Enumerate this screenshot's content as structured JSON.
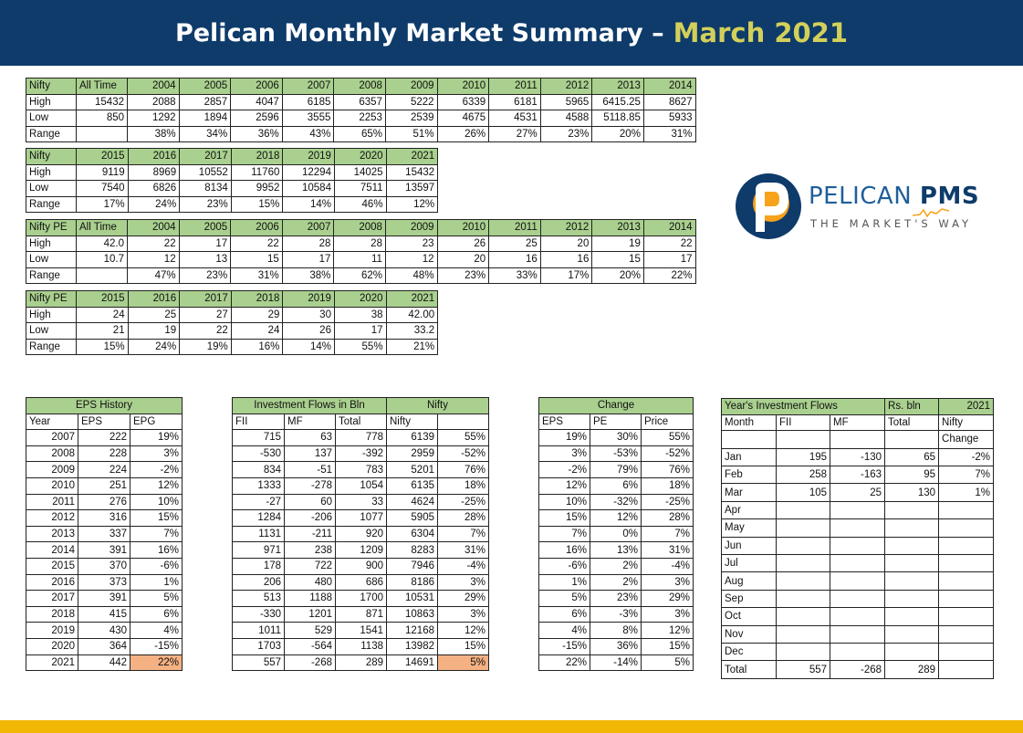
{
  "header": {
    "title": "Pelican Monthly Market Summary –",
    "highlight": "March 2021"
  },
  "logo": {
    "brand": "PELICAN",
    "brand_bold": "PMS",
    "tagline": "THE MARKET'S WAY"
  },
  "colors": {
    "header_bg": "#0e3b6a",
    "accent_text": "#d3d05a",
    "green_cell": "#a9d08e",
    "orange_cell": "#f4b183",
    "footer_bar": "#f2b705"
  },
  "nifty_hist": [
    [
      "Nifty",
      "All Time",
      "2004",
      "2005",
      "2006",
      "2007",
      "2008",
      "2009",
      "2010",
      "2011",
      "2012",
      "2013",
      "2014"
    ],
    [
      "High",
      "15432",
      "2088",
      "2857",
      "4047",
      "6185",
      "6357",
      "5222",
      "6339",
      "6181",
      "5965",
      "6415.25",
      "8627"
    ],
    [
      "Low",
      "850",
      "1292",
      "1894",
      "2596",
      "3555",
      "2253",
      "2539",
      "4675",
      "4531",
      "4588",
      "5118.85",
      "5933"
    ],
    [
      "Range",
      "",
      "38%",
      "34%",
      "36%",
      "43%",
      "65%",
      "51%",
      "26%",
      "27%",
      "23%",
      "20%",
      "31%"
    ]
  ],
  "nifty_recent": [
    [
      "Nifty",
      "2015",
      "2016",
      "2017",
      "2018",
      "2019",
      "2020",
      "2021"
    ],
    [
      "High",
      "9119",
      "8969",
      "10552",
      "11760",
      "12294",
      "14025",
      "15432"
    ],
    [
      "Low",
      "7540",
      "6826",
      "8134",
      "9952",
      "10584",
      "7511",
      "13597"
    ],
    [
      "Range",
      "17%",
      "24%",
      "23%",
      "15%",
      "14%",
      "46%",
      "12%"
    ]
  ],
  "pe_hist": [
    [
      "Nifty PE",
      "All Time",
      "2004",
      "2005",
      "2006",
      "2007",
      "2008",
      "2009",
      "2010",
      "2011",
      "2012",
      "2013",
      "2014"
    ],
    [
      "High",
      "42.0",
      "22",
      "17",
      "22",
      "28",
      "28",
      "23",
      "26",
      "25",
      "20",
      "19",
      "22"
    ],
    [
      "Low",
      "10.7",
      "12",
      "13",
      "15",
      "17",
      "11",
      "12",
      "20",
      "16",
      "16",
      "15",
      "17"
    ],
    [
      "Range",
      "",
      "47%",
      "23%",
      "31%",
      "38%",
      "62%",
      "48%",
      "23%",
      "33%",
      "17%",
      "20%",
      "22%"
    ]
  ],
  "pe_recent": [
    [
      "Nifty PE",
      "2015",
      "2016",
      "2017",
      "2018",
      "2019",
      "2020",
      "2021"
    ],
    [
      "High",
      "24",
      "25",
      "27",
      "29",
      "30",
      "38",
      "42.00"
    ],
    [
      "Low",
      "21",
      "19",
      "22",
      "24",
      "26",
      "17",
      "33.2"
    ],
    [
      "Range",
      "15%",
      "24%",
      "19%",
      "16%",
      "14%",
      "55%",
      "21%"
    ]
  ],
  "eps": {
    "title": "EPS History",
    "headers": [
      "Year",
      "EPS",
      "EPG"
    ],
    "rows": [
      [
        "2007",
        "222",
        "19%"
      ],
      [
        "2008",
        "228",
        "3%"
      ],
      [
        "2009",
        "224",
        "-2%"
      ],
      [
        "2010",
        "251",
        "12%"
      ],
      [
        "2011",
        "276",
        "10%"
      ],
      [
        "2012",
        "316",
        "15%"
      ],
      [
        "2013",
        "337",
        "7%"
      ],
      [
        "2014",
        "391",
        "16%"
      ],
      [
        "2015",
        "370",
        "-6%"
      ],
      [
        "2016",
        "373",
        "1%"
      ],
      [
        "2017",
        "391",
        "5%"
      ],
      [
        "2018",
        "415",
        "6%"
      ],
      [
        "2019",
        "430",
        "4%"
      ],
      [
        "2020",
        "364",
        "-15%"
      ],
      [
        "2021",
        "442",
        "22%"
      ]
    ]
  },
  "flows": {
    "title": "Investment Flows in Bln",
    "nifty_title": "Nifty",
    "headers": [
      "FII",
      "MF",
      "Total",
      "Nifty",
      ""
    ],
    "rows": [
      [
        "715",
        "63",
        "778",
        "6139",
        "55%"
      ],
      [
        "-530",
        "137",
        "-392",
        "2959",
        "-52%"
      ],
      [
        "834",
        "-51",
        "783",
        "5201",
        "76%"
      ],
      [
        "1333",
        "-278",
        "1054",
        "6135",
        "18%"
      ],
      [
        "-27",
        "60",
        "33",
        "4624",
        "-25%"
      ],
      [
        "1284",
        "-206",
        "1077",
        "5905",
        "28%"
      ],
      [
        "1131",
        "-211",
        "920",
        "6304",
        "7%"
      ],
      [
        "971",
        "238",
        "1209",
        "8283",
        "31%"
      ],
      [
        "178",
        "722",
        "900",
        "7946",
        "-4%"
      ],
      [
        "206",
        "480",
        "686",
        "8186",
        "3%"
      ],
      [
        "513",
        "1188",
        "1700",
        "10531",
        "29%"
      ],
      [
        "-330",
        "1201",
        "871",
        "10863",
        "3%"
      ],
      [
        "1011",
        "529",
        "1541",
        "12168",
        "12%"
      ],
      [
        "1703",
        "-564",
        "1138",
        "13982",
        "15%"
      ],
      [
        "557",
        "-268",
        "289",
        "14691",
        "5%"
      ]
    ]
  },
  "change": {
    "title": "Change",
    "headers": [
      "EPS",
      "PE",
      "Price"
    ],
    "rows": [
      [
        "19%",
        "30%",
        "55%"
      ],
      [
        "3%",
        "-53%",
        "-52%"
      ],
      [
        "-2%",
        "79%",
        "76%"
      ],
      [
        "12%",
        "6%",
        "18%"
      ],
      [
        "10%",
        "-32%",
        "-25%"
      ],
      [
        "15%",
        "12%",
        "28%"
      ],
      [
        "7%",
        "0%",
        "7%"
      ],
      [
        "16%",
        "13%",
        "31%"
      ],
      [
        "-6%",
        "2%",
        "-4%"
      ],
      [
        "1%",
        "2%",
        "3%"
      ],
      [
        "5%",
        "23%",
        "29%"
      ],
      [
        "6%",
        "-3%",
        "3%"
      ],
      [
        "4%",
        "8%",
        "12%"
      ],
      [
        "-15%",
        "36%",
        "15%"
      ],
      [
        "22%",
        "-14%",
        "5%"
      ]
    ]
  },
  "yearflows": {
    "title": "Year's Investment Flows",
    "unit": "Rs. bln",
    "year": "2021",
    "headers": [
      "Month",
      "FII",
      "MF",
      "Total",
      "Nifty"
    ],
    "subheader": "Change",
    "rows": [
      [
        "Jan",
        "195",
        "-130",
        "65",
        "-2%"
      ],
      [
        "Feb",
        "258",
        "-163",
        "95",
        "7%"
      ],
      [
        "Mar",
        "105",
        "25",
        "130",
        "1%"
      ],
      [
        "Apr",
        "",
        "",
        "",
        ""
      ],
      [
        "May",
        "",
        "",
        "",
        ""
      ],
      [
        "Jun",
        "",
        "",
        "",
        ""
      ],
      [
        "Jul",
        "",
        "",
        "",
        ""
      ],
      [
        "Aug",
        "",
        "",
        "",
        ""
      ],
      [
        "Sep",
        "",
        "",
        "",
        ""
      ],
      [
        "Oct",
        "",
        "",
        "",
        ""
      ],
      [
        "Nov",
        "",
        "",
        "",
        ""
      ],
      [
        "Dec",
        "",
        "",
        "",
        ""
      ]
    ],
    "total": [
      "Total",
      "557",
      "-268",
      "289",
      ""
    ]
  }
}
